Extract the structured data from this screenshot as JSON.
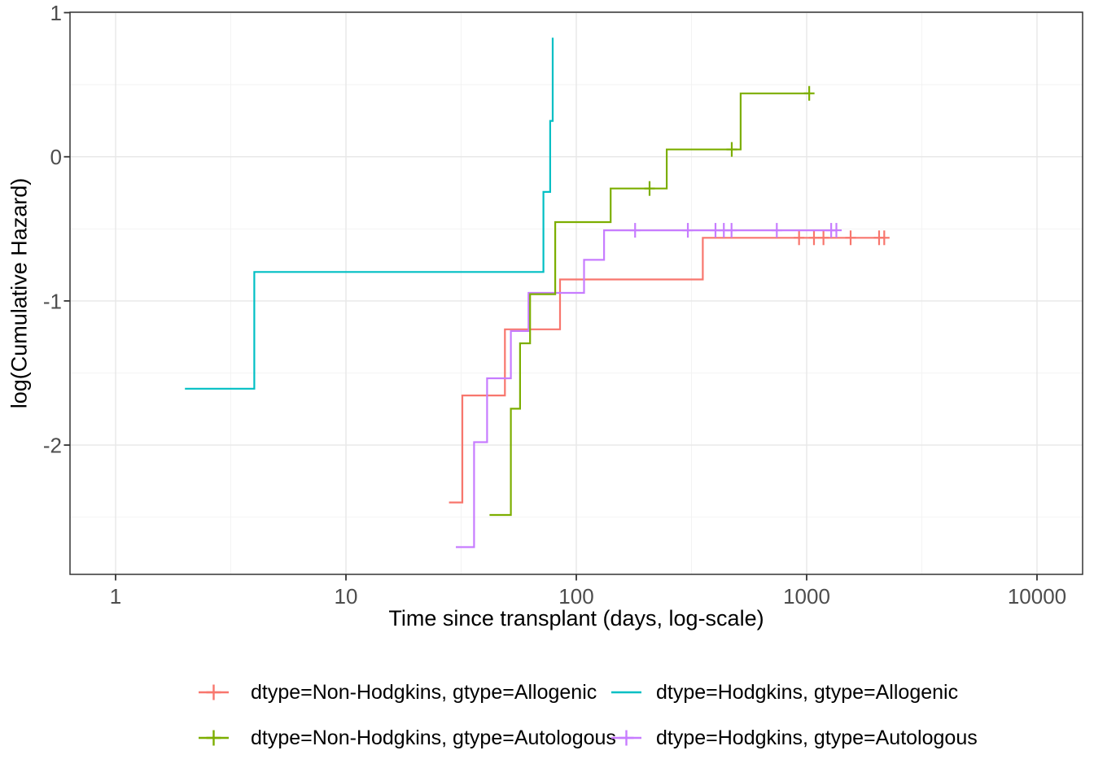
{
  "chart_data": {
    "type": "line",
    "variant": "step-cumulative-hazard",
    "title": "",
    "xlabel": "Time since transplant (days, log-scale)",
    "ylabel": "log(Cumulative Hazard)",
    "x_scale": "log10",
    "grid": true,
    "legend_position": "bottom",
    "xlim_log10": [
      -0.198,
      4.198
    ],
    "ylim": [
      -2.897,
      1.003
    ],
    "x_ticks": [
      1,
      10,
      100,
      1000,
      10000
    ],
    "x_tick_labels": [
      "1",
      "10",
      "100",
      "1000",
      "10000"
    ],
    "x_minor_ticks_log10": [
      0.5,
      1.5,
      2.5,
      3.5
    ],
    "y_ticks": [
      1,
      0,
      -1,
      -2
    ],
    "y_tick_labels": [
      "1",
      "0",
      "-1",
      "-2"
    ],
    "y_minor_ticks": [
      0.5,
      -0.5,
      -1.5,
      -2.5
    ],
    "style": {
      "background": "#FFFFFF",
      "grid_major_color": "#E7E7E7",
      "grid_minor_color": "#F2F2F2",
      "panel_border_color": "#333333",
      "tick_color": "#333333",
      "axis_text_color": "#4D4D4D",
      "title_color": "#000000"
    },
    "series": [
      {
        "id": "nonhodgkins-allogenic",
        "name": "dtype=Non-Hodgkins, gtype=Allogenic",
        "color": "#F8766D",
        "z": 1,
        "legend_cross": true,
        "steps": [
          [
            28,
            -2.398
          ],
          [
            32,
            -1.656
          ],
          [
            49,
            -1.197
          ],
          [
            85,
            -0.851
          ],
          [
            354,
            -0.562
          ]
        ],
        "censors": [
          [
            927,
            -0.562
          ],
          [
            1076,
            -0.562
          ],
          [
            1183,
            -0.562
          ],
          [
            1552,
            -0.562
          ],
          [
            2063,
            -0.562
          ],
          [
            2172,
            -0.562
          ]
        ],
        "end": [
          2172,
          -0.562
        ]
      },
      {
        "id": "hodgkins-allogenic",
        "name": "dtype=Hodgkins, gtype=Allogenic",
        "color": "#00BFC4",
        "z": 4,
        "legend_cross": false,
        "steps": [
          [
            2,
            -1.609
          ],
          [
            4,
            -0.799
          ],
          [
            72,
            -0.244
          ],
          [
            77,
            0.249
          ],
          [
            79,
            0.826
          ]
        ],
        "censors": [],
        "end": [
          79,
          0.826
        ]
      },
      {
        "id": "nonhodgkins-autologous",
        "name": "dtype=Non-Hodgkins, gtype=Autologous",
        "color": "#7CAE00",
        "z": 3,
        "legend_cross": true,
        "steps": [
          [
            42,
            -2.485
          ],
          [
            52,
            -1.748
          ],
          [
            57,
            -1.294
          ],
          [
            63,
            -0.953
          ],
          [
            81,
            -0.453
          ],
          [
            141,
            -0.22
          ],
          [
            247,
            0.051
          ],
          [
            517,
            0.44
          ]
        ],
        "censors": [
          [
            208,
            -0.22
          ],
          [
            473,
            0.051
          ],
          [
            1026,
            0.44
          ]
        ],
        "end": [
          1026,
          0.44
        ]
      },
      {
        "id": "hodgkins-autologous",
        "name": "dtype=Hodgkins, gtype=Autologous",
        "color": "#C77CFF",
        "z": 2,
        "legend_cross": true,
        "steps": [
          [
            30,
            -2.708
          ],
          [
            36,
            -1.98
          ],
          [
            41,
            -1.537
          ],
          [
            52,
            -1.209
          ],
          [
            62,
            -0.944
          ],
          [
            108,
            -0.715
          ],
          [
            132,
            -0.51
          ]
        ],
        "censors": [
          [
            180,
            -0.51
          ],
          [
            305,
            -0.51
          ],
          [
            402,
            -0.51
          ],
          [
            437,
            -0.51
          ],
          [
            472,
            -0.51
          ],
          [
            742,
            -0.51
          ],
          [
            1278,
            -0.51
          ],
          [
            1346,
            -0.51
          ]
        ],
        "end": [
          1346,
          -0.51
        ]
      }
    ]
  }
}
